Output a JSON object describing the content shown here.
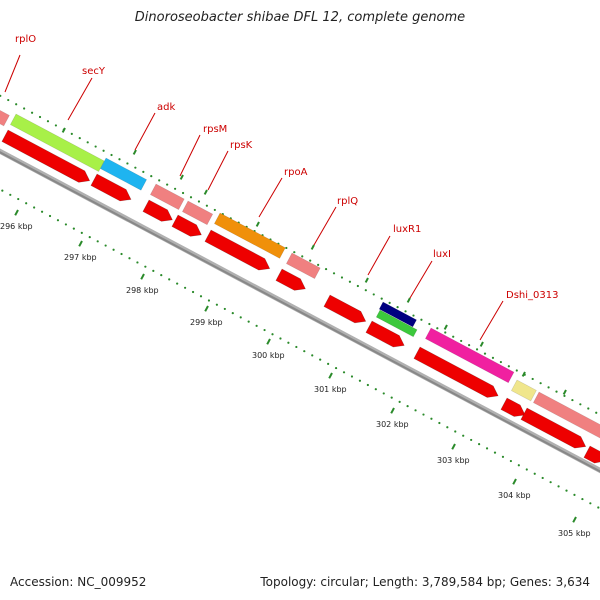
{
  "title": "Dinoroseobacter shibae DFL 12, complete genome",
  "footer": {
    "accession": "Accession: NC_009952",
    "summary": "Topology: circular; Length: 3,789,584 bp; Genes: 3,634"
  },
  "gene_labels": [
    "rplO",
    "secY",
    "adk",
    "rpsM",
    "rpsK",
    "rpoA",
    "rplQ",
    "luxR1",
    "luxI",
    "Dshi_0313"
  ],
  "kbp_ticks": [
    "296 kbp",
    "297 kbp",
    "298 kbp",
    "299 kbp",
    "300 kbp",
    "301 kbp",
    "302 kbp",
    "303 kbp",
    "304 kbp",
    "305 kbp"
  ],
  "colors": {
    "pink": "#f08080",
    "lime": "#a8f048",
    "cyan": "#1eb4f0",
    "orange": "#f0900a",
    "navy": "#000080",
    "green": "#3cc83c",
    "magenta": "#f020a0",
    "khaki": "#f0e68c",
    "red": "#ee0000",
    "backbone": "#888888",
    "tick": "#2a8a2a",
    "label": "#cc0000"
  }
}
